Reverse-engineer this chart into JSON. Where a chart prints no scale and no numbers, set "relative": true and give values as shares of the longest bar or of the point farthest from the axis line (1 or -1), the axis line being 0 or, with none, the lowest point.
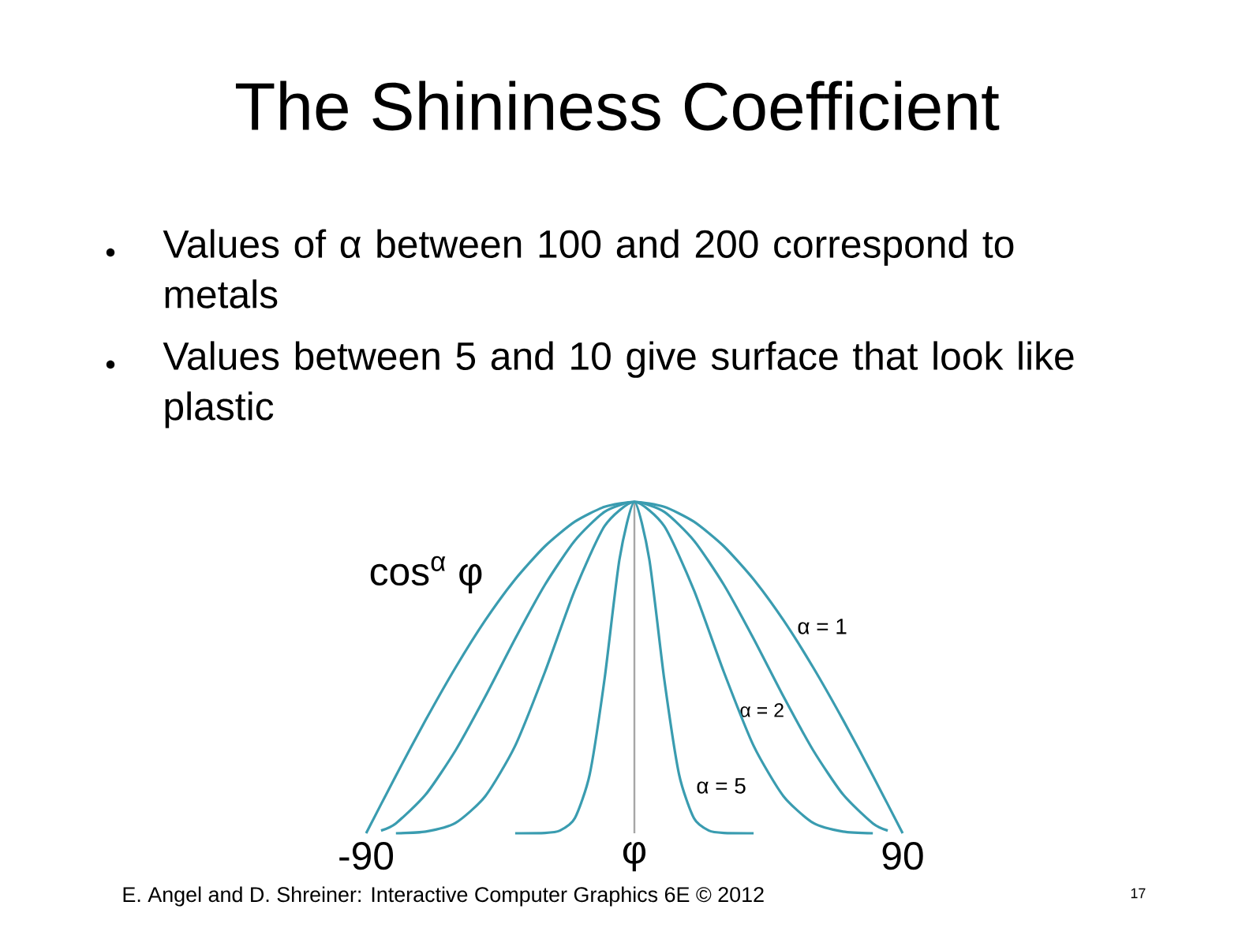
{
  "chart_data": {
    "type": "line",
    "title": "The Shininess Coefficient",
    "ylabel": "cos$^{α}$ φ",
    "relative": true,
    "xlim": [
      -90,
      90
    ],
    "xticks": [
      -90,
      {
        "value": 0,
        "label": "φ"
      },
      90
    ],
    "grid": false,
    "marker": "none",
    "line_style": "solid",
    "ref_lines": [
      {
        "axis": "x",
        "value": 0,
        "color": "#a6a6a6"
      }
    ],
    "series": [
      {
        "color": "#3a9cb0",
        "x": [
          -90,
          -80,
          -70,
          -60,
          -50,
          -40,
          -30,
          -20,
          -10,
          0,
          10,
          20,
          30,
          40,
          50,
          60,
          70,
          80,
          90
        ],
        "values": [
          0,
          0.174,
          0.342,
          0.5,
          0.643,
          0.766,
          0.866,
          0.94,
          0.985,
          1,
          0.985,
          0.94,
          0.866,
          0.766,
          0.643,
          0.5,
          0.342,
          0.174,
          0
        ]
      },
      {
        "color": "#3a9cb0",
        "x": [
          -85,
          -80,
          -70,
          -60,
          -50,
          -40,
          -30,
          -20,
          -10,
          0,
          10,
          20,
          30,
          40,
          50,
          60,
          70,
          80,
          85
        ],
        "values": [
          0.008,
          0.03,
          0.117,
          0.25,
          0.413,
          0.587,
          0.75,
          0.883,
          0.97,
          1,
          0.97,
          0.883,
          0.75,
          0.587,
          0.413,
          0.25,
          0.117,
          0.03,
          0.008
        ]
      },
      {
        "color": "#3a9cb0",
        "x": [
          -80,
          -70,
          -60,
          -50,
          -40,
          -30,
          -20,
          -10,
          0,
          10,
          20,
          30,
          40,
          50,
          60,
          70,
          80
        ],
        "values": [
          0,
          0.005,
          0.031,
          0.112,
          0.264,
          0.487,
          0.733,
          0.927,
          1,
          0.927,
          0.733,
          0.487,
          0.264,
          0.112,
          0.031,
          0.005,
          0
        ]
      },
      {
        "color": "#3a9cb0",
        "x": [
          -40,
          -30,
          -25,
          -20,
          -15,
          -10,
          -5,
          0,
          5,
          10,
          15,
          20,
          25,
          30,
          40
        ],
        "values": [
          0,
          0.001,
          0.008,
          0.045,
          0.177,
          0.466,
          0.827,
          1,
          0.827,
          0.466,
          0.177,
          0.045,
          0.008,
          0.001,
          0
        ]
      }
    ],
    "annotations": [
      "Values of α between 100 and 200 correspond to metals",
      "Values between 5 and 10 give surface that look like plastic",
      "α = 1",
      "α = 2",
      "α = 5",
      "E. Angel and D. Shreiner: Interactive Computer Graphics 6E © 2012",
      "17"
    ]
  }
}
